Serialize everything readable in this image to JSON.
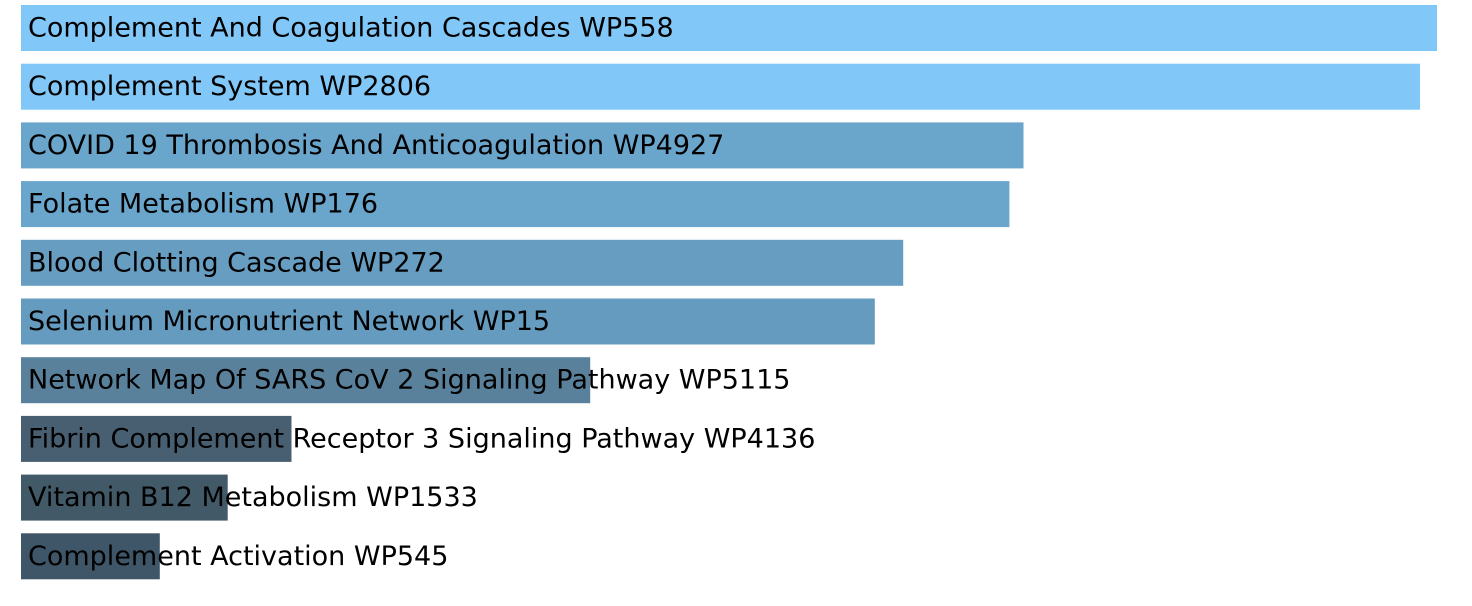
{
  "chart_data": {
    "type": "bar",
    "orientation": "horizontal",
    "title": "",
    "xlabel": "",
    "ylabel": "",
    "grid": false,
    "legend": "none",
    "categories": [
      "Complement And Coagulation Cascades WP558",
      "Complement System WP2806",
      "COVID 19 Thrombosis And Anticoagulation WP4927",
      "Folate Metabolism WP176",
      "Blood Clotting Cascade WP272",
      "Selenium Micronutrient Network WP15",
      "Network Map Of SARS CoV 2 Signaling Pathway WP5115",
      "Fibrin Complement Receptor 3 Signaling Pathway WP4136",
      "Vitamin B12 Metabolism WP1533",
      "Complement Activation WP545"
    ],
    "values": [
      1.0,
      0.988,
      0.708,
      0.698,
      0.623,
      0.603,
      0.402,
      0.191,
      0.146,
      0.098
    ],
    "xlim": [
      0,
      1
    ],
    "colors": [
      "#81c8f8",
      "#81c8f8",
      "#6aa5cb",
      "#6aa5cb",
      "#679dc1",
      "#659bbe",
      "#5a819b",
      "#485f72",
      "#425968",
      "#3f5668"
    ]
  }
}
